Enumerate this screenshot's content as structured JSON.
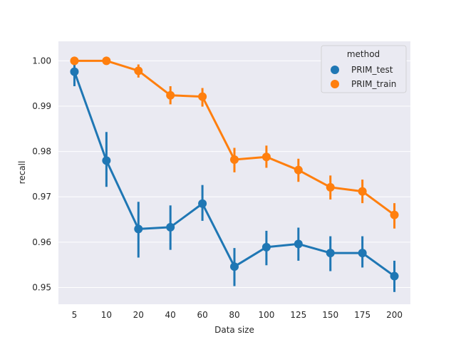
{
  "chart_data": {
    "type": "line",
    "categories": [
      "5",
      "10",
      "20",
      "40",
      "60",
      "80",
      "100",
      "125",
      "150",
      "175",
      "200"
    ],
    "xlabel": "Data size",
    "ylabel": "recall",
    "ylim": [
      0.9463,
      1.0043
    ],
    "yticks": [
      0.95,
      0.96,
      0.97,
      0.98,
      0.99,
      1.0
    ],
    "ytick_labels": [
      "0.95",
      "0.96",
      "0.97",
      "0.98",
      "0.99",
      "1.00"
    ],
    "grid": true,
    "legend": {
      "title": "method",
      "placement": "top-right"
    },
    "series": [
      {
        "name": "PRIM_test",
        "color": "#1f77b4",
        "values": [
          0.9976,
          0.978,
          0.9629,
          0.9633,
          0.9685,
          0.9546,
          0.9589,
          0.9596,
          0.9576,
          0.9576,
          0.9525
        ],
        "err_low": [
          0.9944,
          0.9722,
          0.9566,
          0.9583,
          0.9647,
          0.9503,
          0.9549,
          0.9559,
          0.9536,
          0.9544,
          0.949
        ],
        "err_high": [
          1.0,
          0.9843,
          0.9689,
          0.9681,
          0.9726,
          0.9587,
          0.9625,
          0.9632,
          0.9613,
          0.9613,
          0.9559
        ]
      },
      {
        "name": "PRIM_train",
        "color": "#ff7f0e",
        "values": [
          1.0,
          1.0,
          0.9978,
          0.9924,
          0.9921,
          0.9782,
          0.9788,
          0.9759,
          0.9721,
          0.9712,
          0.966
        ],
        "err_low": [
          1.0,
          1.0,
          0.9963,
          0.9904,
          0.9899,
          0.9754,
          0.9764,
          0.9733,
          0.9694,
          0.9686,
          0.963
        ],
        "err_high": [
          1.0,
          1.0,
          0.9992,
          0.9944,
          0.994,
          0.9808,
          0.9813,
          0.9784,
          0.9747,
          0.9738,
          0.9686
        ]
      }
    ]
  }
}
